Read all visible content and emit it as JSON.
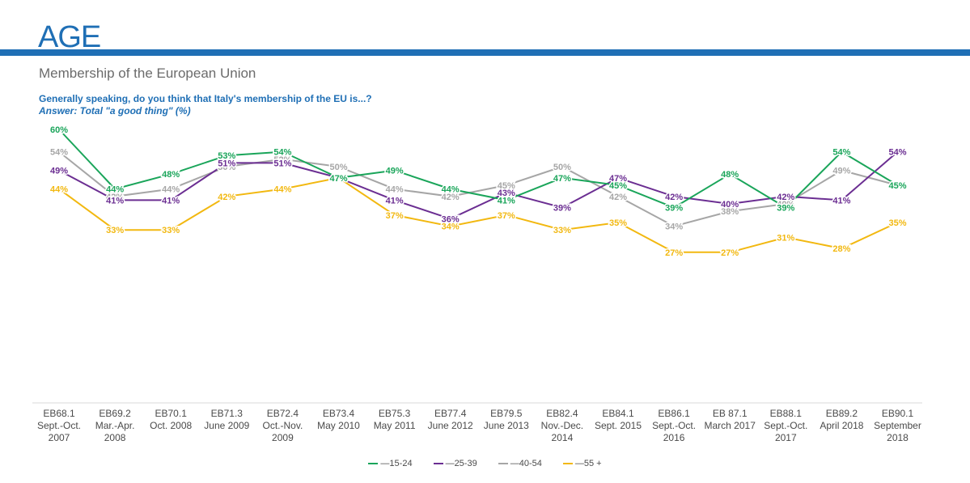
{
  "header": {
    "title": "AGE",
    "subtitle": "Membership of the European Union",
    "question": "Generally speaking, do you think that Italy's membership of the EU is...?",
    "answer": "Answer: Total \"a good thing\" (%)"
  },
  "colors": {
    "accent": "#1f6fb5",
    "series_15_24": "#1aa55a",
    "series_25_39": "#6b2e92",
    "series_40_54": "#a6a6a6",
    "series_55_plus": "#f2b810"
  },
  "chart_data": {
    "type": "line",
    "title": "Membership of the European Union",
    "categories": [
      [
        "EB68.1",
        "Sept.-Oct.",
        "2007"
      ],
      [
        "EB69.2",
        "Mar.-Apr.",
        "2008"
      ],
      [
        "EB70.1",
        "Oct. 2008"
      ],
      [
        "EB71.3",
        "June 2009"
      ],
      [
        "EB72.4",
        "Oct.-Nov.",
        "2009"
      ],
      [
        "EB73.4",
        "May 2010"
      ],
      [
        "EB75.3",
        "May 2011"
      ],
      [
        "EB77.4",
        "June 2012"
      ],
      [
        "EB79.5",
        "June 2013"
      ],
      [
        "EB82.4",
        "Nov.-Dec.",
        "2014"
      ],
      [
        "EB84.1",
        "Sept. 2015"
      ],
      [
        "EB86.1",
        "Sept.-Oct.",
        "2016"
      ],
      [
        "EB 87.1",
        "March 2017"
      ],
      [
        "EB88.1",
        "Sept.-Oct.",
        "2017"
      ],
      [
        "EB89.2",
        "April 2018"
      ],
      [
        "EB90.1",
        "September",
        "2018"
      ]
    ],
    "series": [
      {
        "name": "15-24",
        "color": "#1aa55a",
        "values": [
          60,
          44,
          48,
          53,
          54,
          47,
          49,
          44,
          41,
          47,
          45,
          39,
          48,
          39,
          54,
          45
        ]
      },
      {
        "name": "25-39",
        "color": "#6b2e92",
        "values": [
          49,
          41,
          41,
          51,
          51,
          47,
          41,
          36,
          43,
          39,
          47,
          42,
          40,
          42,
          41,
          54
        ]
      },
      {
        "name": "40-54",
        "color": "#a6a6a6",
        "values": [
          54,
          42,
          44,
          50,
          52,
          50,
          44,
          42,
          45,
          50,
          42,
          34,
          38,
          40,
          49,
          45
        ]
      },
      {
        "name": "55 +",
        "color": "#f2b810",
        "values": [
          44,
          33,
          33,
          42,
          44,
          47,
          37,
          34,
          37,
          33,
          35,
          27,
          27,
          31,
          28,
          35
        ]
      }
    ],
    "value_suffix": "%",
    "ylim": [
      0,
      100
    ],
    "legend_position": "bottom",
    "grid": false
  }
}
